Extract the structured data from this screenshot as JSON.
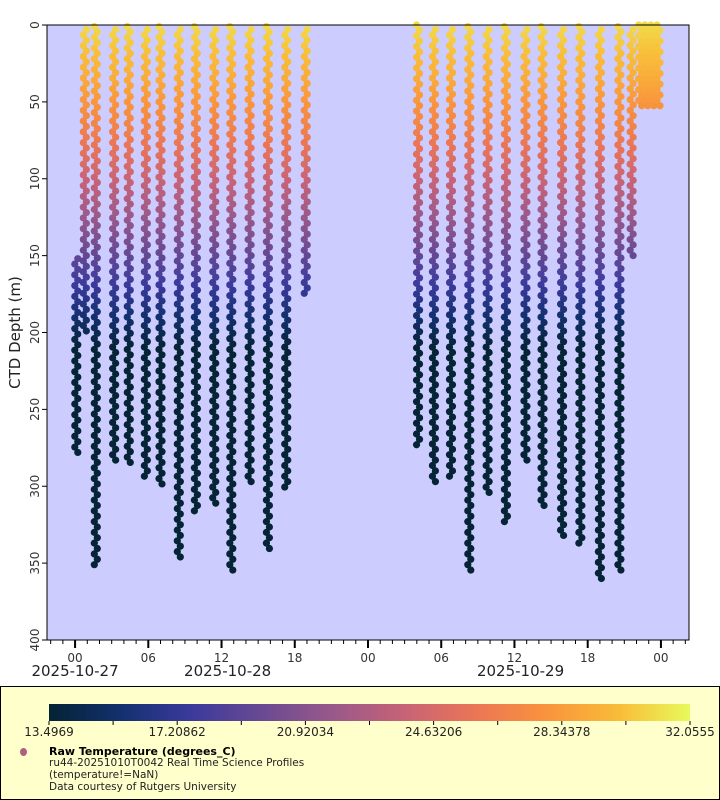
{
  "chart_data": {
    "type": "scatter",
    "title": "",
    "xlabel": "",
    "ylabel": "CTD Depth (m)",
    "ylim": [
      400,
      0
    ],
    "y_ticks": [
      0,
      50,
      100,
      150,
      200,
      250,
      300,
      350,
      400
    ],
    "x_unit": "hours since 2025-10-27 00:00",
    "xlim": [
      -2.3,
      50.3
    ],
    "x_ticks": [
      {
        "hour": 0,
        "label": "00"
      },
      {
        "hour": 6,
        "label": "06"
      },
      {
        "hour": 12,
        "label": "12"
      },
      {
        "hour": 18,
        "label": "18"
      },
      {
        "hour": 24,
        "label": "00"
      },
      {
        "hour": 30,
        "label": "06"
      },
      {
        "hour": 36,
        "label": "12"
      },
      {
        "hour": 42,
        "label": "18"
      },
      {
        "hour": 48,
        "label": "00"
      }
    ],
    "date_labels": [
      {
        "hour": 0,
        "label": "2025-10-27"
      },
      {
        "hour": 12.5,
        "label": "2025-10-28"
      },
      {
        "hour": 36.5,
        "label": "2025-10-29"
      }
    ],
    "grid": false,
    "color_variable": "Raw Temperature (degrees_C)",
    "color_range": [
      13.4969,
      32.0555
    ],
    "colorbar_ticks": [
      "13.4969",
      "17.20862",
      "20.92034",
      "24.63206",
      "28.34378",
      "32.0555"
    ],
    "colormap_stops": [
      "#042333",
      "#13306e",
      "#3b3a9c",
      "#6a4a92",
      "#9a598a",
      "#c76376",
      "#eb7655",
      "#f9943c",
      "#f9bc39",
      "#e8fa5b"
    ],
    "thermocline": {
      "warm_top_c": 31.0,
      "surface_mixed_depth_m": 20,
      "cold_below_m": 210,
      "cold_c": 13.6
    },
    "profiles": [
      {
        "hour": 0.1,
        "top": 152,
        "bottom": 280
      },
      {
        "hour": 0.8,
        "top": 3,
        "bottom": 200
      },
      {
        "hour": 1.7,
        "top": 1,
        "bottom": 352
      },
      {
        "hour": 3.2,
        "top": 3,
        "bottom": 283
      },
      {
        "hour": 4.4,
        "top": 1,
        "bottom": 287
      },
      {
        "hour": 5.8,
        "top": 3,
        "bottom": 296
      },
      {
        "hour": 7.0,
        "top": 1,
        "bottom": 300
      },
      {
        "hour": 8.5,
        "top": 3,
        "bottom": 348
      },
      {
        "hour": 9.9,
        "top": 1,
        "bottom": 318
      },
      {
        "hour": 11.4,
        "top": 3,
        "bottom": 311
      },
      {
        "hour": 12.8,
        "top": 1,
        "bottom": 356
      },
      {
        "hour": 14.3,
        "top": 3,
        "bottom": 300
      },
      {
        "hour": 15.8,
        "top": 1,
        "bottom": 343
      },
      {
        "hour": 17.3,
        "top": 3,
        "bottom": 302
      },
      {
        "hour": 18.9,
        "top": 3,
        "bottom": 175
      },
      {
        "hour": 28.1,
        "top": 0,
        "bottom": 276
      },
      {
        "hour": 29.4,
        "top": 3,
        "bottom": 300
      },
      {
        "hour": 30.8,
        "top": 3,
        "bottom": 295
      },
      {
        "hour": 32.3,
        "top": 1,
        "bottom": 356
      },
      {
        "hour": 33.8,
        "top": 3,
        "bottom": 307
      },
      {
        "hour": 35.3,
        "top": 1,
        "bottom": 326
      },
      {
        "hour": 36.9,
        "top": 3,
        "bottom": 285
      },
      {
        "hour": 38.3,
        "top": 1,
        "bottom": 313
      },
      {
        "hour": 39.9,
        "top": 3,
        "bottom": 333
      },
      {
        "hour": 41.4,
        "top": 1,
        "bottom": 337
      },
      {
        "hour": 43.0,
        "top": 3,
        "bottom": 360
      },
      {
        "hour": 44.6,
        "top": 1,
        "bottom": 357
      },
      {
        "hour": 45.6,
        "top": 3,
        "bottom": 150
      },
      {
        "hour": 46.3,
        "top": 0,
        "bottom": 54
      },
      {
        "hour": 46.8,
        "top": 0,
        "bottom": 54
      },
      {
        "hour": 47.3,
        "top": 0,
        "bottom": 54
      },
      {
        "hour": 47.8,
        "top": 0,
        "bottom": 54
      }
    ]
  },
  "legend": {
    "marker_color": "#b0607e",
    "title": "Raw Temperature (degrees_C)",
    "lines": [
      "ru44-20251010T0042 Real Time Science Profiles",
      "(temperature!=NaN)",
      "Data courtesy of Rutgers University"
    ]
  }
}
